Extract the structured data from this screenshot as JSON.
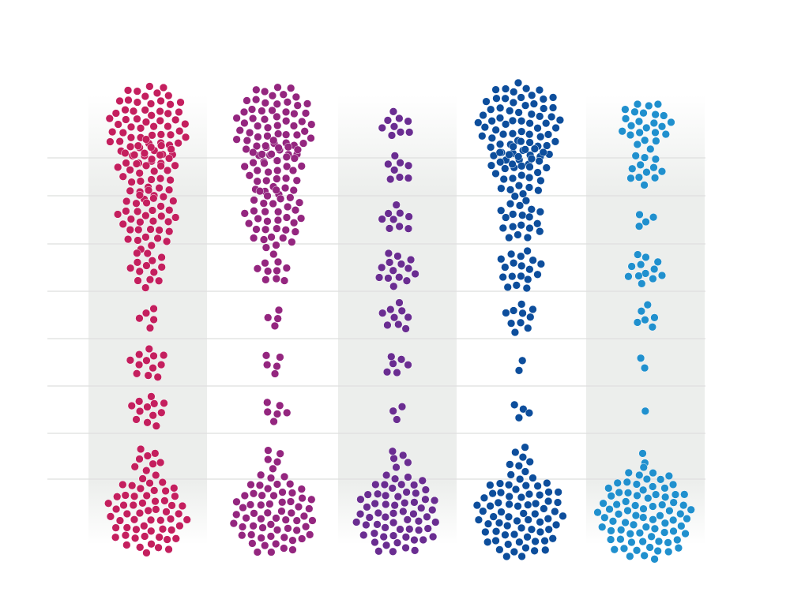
{
  "chart_data": {
    "type": "scatter",
    "subtype": "packed-dot-cluster-grid",
    "title": "",
    "xlabel": "",
    "ylabel": "",
    "columns": [
      {
        "color": "#c41f5e",
        "shaded": true,
        "counts": [
          60,
          34,
          34,
          14,
          5,
          12,
          12,
          8,
          58
        ]
      },
      {
        "color": "#94267f",
        "shaded": false,
        "counts": [
          58,
          32,
          34,
          10,
          4,
          5,
          6,
          5,
          62
        ]
      },
      {
        "color": "#6a2d91",
        "shaded": true,
        "counts": [
          9,
          8,
          9,
          14,
          9,
          6,
          3,
          5,
          62
        ]
      },
      {
        "color": "#0d4e9c",
        "shaded": false,
        "counts": [
          66,
          30,
          20,
          18,
          10,
          2,
          4,
          6,
          70
        ]
      },
      {
        "color": "#2090ce",
        "shaded": true,
        "counts": [
          24,
          12,
          4,
          12,
          6,
          2,
          1,
          2,
          80
        ]
      }
    ],
    "rows": 9,
    "grid": true,
    "legend": "none"
  }
}
